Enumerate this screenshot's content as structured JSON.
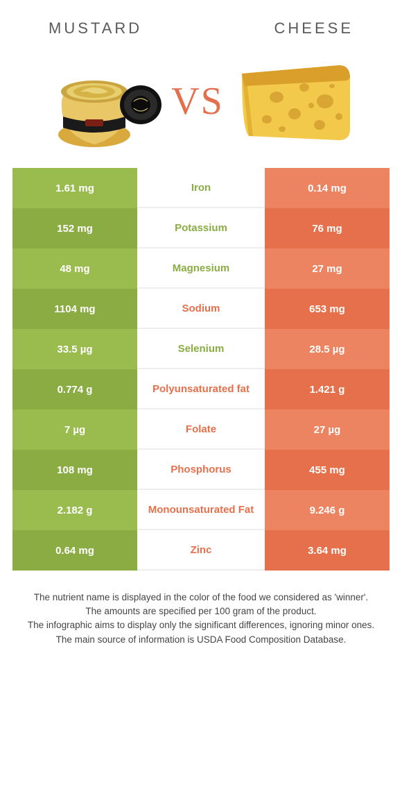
{
  "header": {
    "left_title": "MUSTARD",
    "right_title": "CHEESE"
  },
  "vs_label": "VS",
  "colors": {
    "left_light": "#9abb4e",
    "left_dark": "#8aac43",
    "right_light": "#ec8361",
    "right_dark": "#e5704b",
    "mid_border": "#eeeeee",
    "mid_green_text": "#8aac43",
    "mid_orange_text": "#e5704b",
    "heading_text": "#5a5a5a",
    "footnote_text": "#444444",
    "vs_text": "#e36f4f",
    "background": "#ffffff"
  },
  "table": {
    "rows": [
      {
        "left": "1.61 mg",
        "label": "Iron",
        "winner": "left",
        "right": "0.14 mg"
      },
      {
        "left": "152 mg",
        "label": "Potassium",
        "winner": "left",
        "right": "76 mg"
      },
      {
        "left": "48 mg",
        "label": "Magnesium",
        "winner": "left",
        "right": "27 mg"
      },
      {
        "left": "1104 mg",
        "label": "Sodium",
        "winner": "right",
        "right": "653 mg"
      },
      {
        "left": "33.5 µg",
        "label": "Selenium",
        "winner": "left",
        "right": "28.5 µg"
      },
      {
        "left": "0.774 g",
        "label": "Polyunsaturated fat",
        "winner": "right",
        "right": "1.421 g"
      },
      {
        "left": "7 µg",
        "label": "Folate",
        "winner": "right",
        "right": "27 µg"
      },
      {
        "left": "108 mg",
        "label": "Phosphorus",
        "winner": "right",
        "right": "455 mg"
      },
      {
        "left": "2.182 g",
        "label": "Monounsaturated Fat",
        "winner": "right",
        "right": "9.246 g"
      },
      {
        "left": "0.64 mg",
        "label": "Zinc",
        "winner": "right",
        "right": "3.64 mg"
      }
    ]
  },
  "footnotes": [
    "The nutrient name is displayed in the color of the food we considered as 'winner'.",
    "The amounts are specified per 100 gram of the product.",
    "The infographic aims to display only the significant differences, ignoring minor ones.",
    "The main source of information is USDA Food Composition Database."
  ]
}
